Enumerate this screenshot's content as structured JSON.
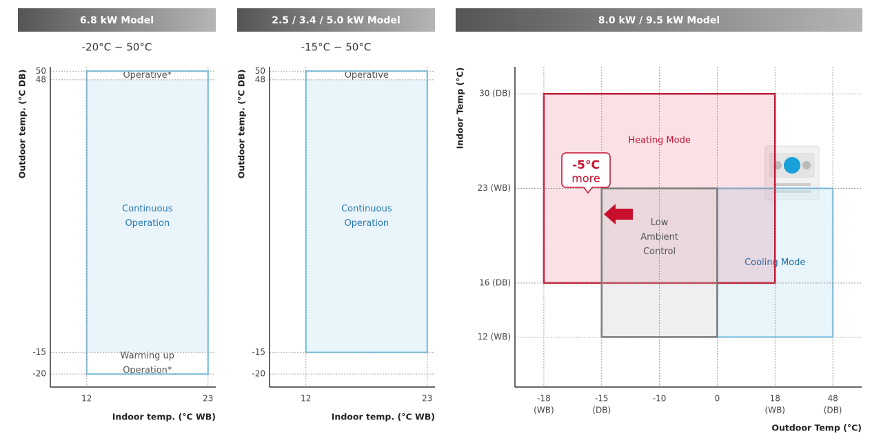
{
  "chart_data": [
    {
      "type": "range",
      "title": "6.8 kW Model",
      "subtitle": "-20°C ~ 50°C",
      "xlabel": "Indoor temp. (°C WB)",
      "ylabel": "Outdoor temp. (°C DB)",
      "xlim": [
        8.7,
        23.7
      ],
      "ylim": [
        -23,
        51
      ],
      "xticks": [
        12,
        23
      ],
      "yticks": [
        -20,
        -15,
        48,
        50
      ],
      "grid": true,
      "regions": [
        {
          "x": [
            12,
            23
          ],
          "y": [
            -15,
            48
          ],
          "fill": "#eaf4fb",
          "label": [
            "Continuous",
            "Operation"
          ],
          "text_color": "#2a7ab0"
        },
        {
          "x": [
            12,
            23
          ],
          "y": [
            48,
            50
          ],
          "label": [
            "Operative*"
          ],
          "text_color": "#555555"
        },
        {
          "x": [
            12,
            23
          ],
          "y": [
            -20,
            -15
          ],
          "label": [
            "Warming up",
            "Operation*"
          ],
          "text_color": "#555555"
        },
        {
          "x": [
            12,
            23
          ],
          "y": [
            -20,
            50
          ],
          "stroke": "#8ccfee"
        }
      ]
    },
    {
      "type": "range",
      "title": "2.5 / 3.4 / 5.0 kW Model",
      "subtitle": "-15°C ~ 50°C",
      "xlabel": "Indoor temp. (°C WB)",
      "ylabel": "Outdoor temp. (°C DB)",
      "xlim": [
        8.7,
        23.7
      ],
      "ylim": [
        -23,
        51
      ],
      "xticks": [
        12,
        23
      ],
      "yticks": [
        -20,
        -15,
        48,
        50
      ],
      "grid": true,
      "regions": [
        {
          "x": [
            12,
            23
          ],
          "y": [
            -15,
            48
          ],
          "fill": "#eaf4fb",
          "label": [
            "Continuous",
            "Operation"
          ],
          "text_color": "#2a7ab0"
        },
        {
          "x": [
            12,
            23
          ],
          "y": [
            48,
            50
          ],
          "label": [
            "Operative"
          ],
          "text_color": "#555555"
        },
        {
          "x": [
            12,
            23
          ],
          "y": [
            -15,
            50
          ],
          "stroke": "#8ccfee"
        }
      ]
    },
    {
      "type": "range",
      "title": "8.0 kW / 9.5 kW Model",
      "xlabel": "Outdoor Temp (°C)",
      "ylabel": "Indoor Temp (°C)",
      "xlim": [
        -21,
        51
      ],
      "ylim": [
        8.3,
        32
      ],
      "xticks": [
        {
          "value": -18,
          "label": "-18",
          "note": "(WB)"
        },
        {
          "value": -15,
          "label": "-15",
          "note": "(DB)"
        },
        -10,
        0,
        {
          "value": 18,
          "label": "18",
          "note": "(WB)"
        },
        {
          "value": 48,
          "label": "48",
          "note": "(DB)"
        }
      ],
      "yticks": [
        {
          "value": 30,
          "label": "30 (DB)"
        },
        {
          "value": 23,
          "label": "23 (WB)"
        },
        {
          "value": 16,
          "label": "16 (DB)"
        },
        {
          "value": 12,
          "label": "12 (WB)"
        }
      ],
      "grid": true,
      "regions": [
        {
          "x": [
            0,
            48
          ],
          "y": [
            12,
            23
          ],
          "fill": "rgba(205,232,247,0.45)",
          "stroke": "#8ccfee",
          "label": [
            "Cooling Mode"
          ],
          "text_color": "#1f6fa8"
        },
        {
          "x": [
            -18,
            18
          ],
          "y": [
            16,
            30
          ],
          "fill": "rgba(215,40,80,0.14)",
          "stroke": "#c8102e",
          "label": [
            "Heating Mode"
          ],
          "text_color": "#c8102e"
        },
        {
          "x": [
            -15,
            0
          ],
          "y": [
            12,
            23
          ],
          "fill": "rgba(190,190,190,0.25)",
          "stroke": "#777777",
          "label": [
            "Low",
            "Ambient",
            "Control"
          ],
          "text_color": "#555555"
        }
      ],
      "annotation": [
        "-5°C",
        "more"
      ]
    }
  ]
}
